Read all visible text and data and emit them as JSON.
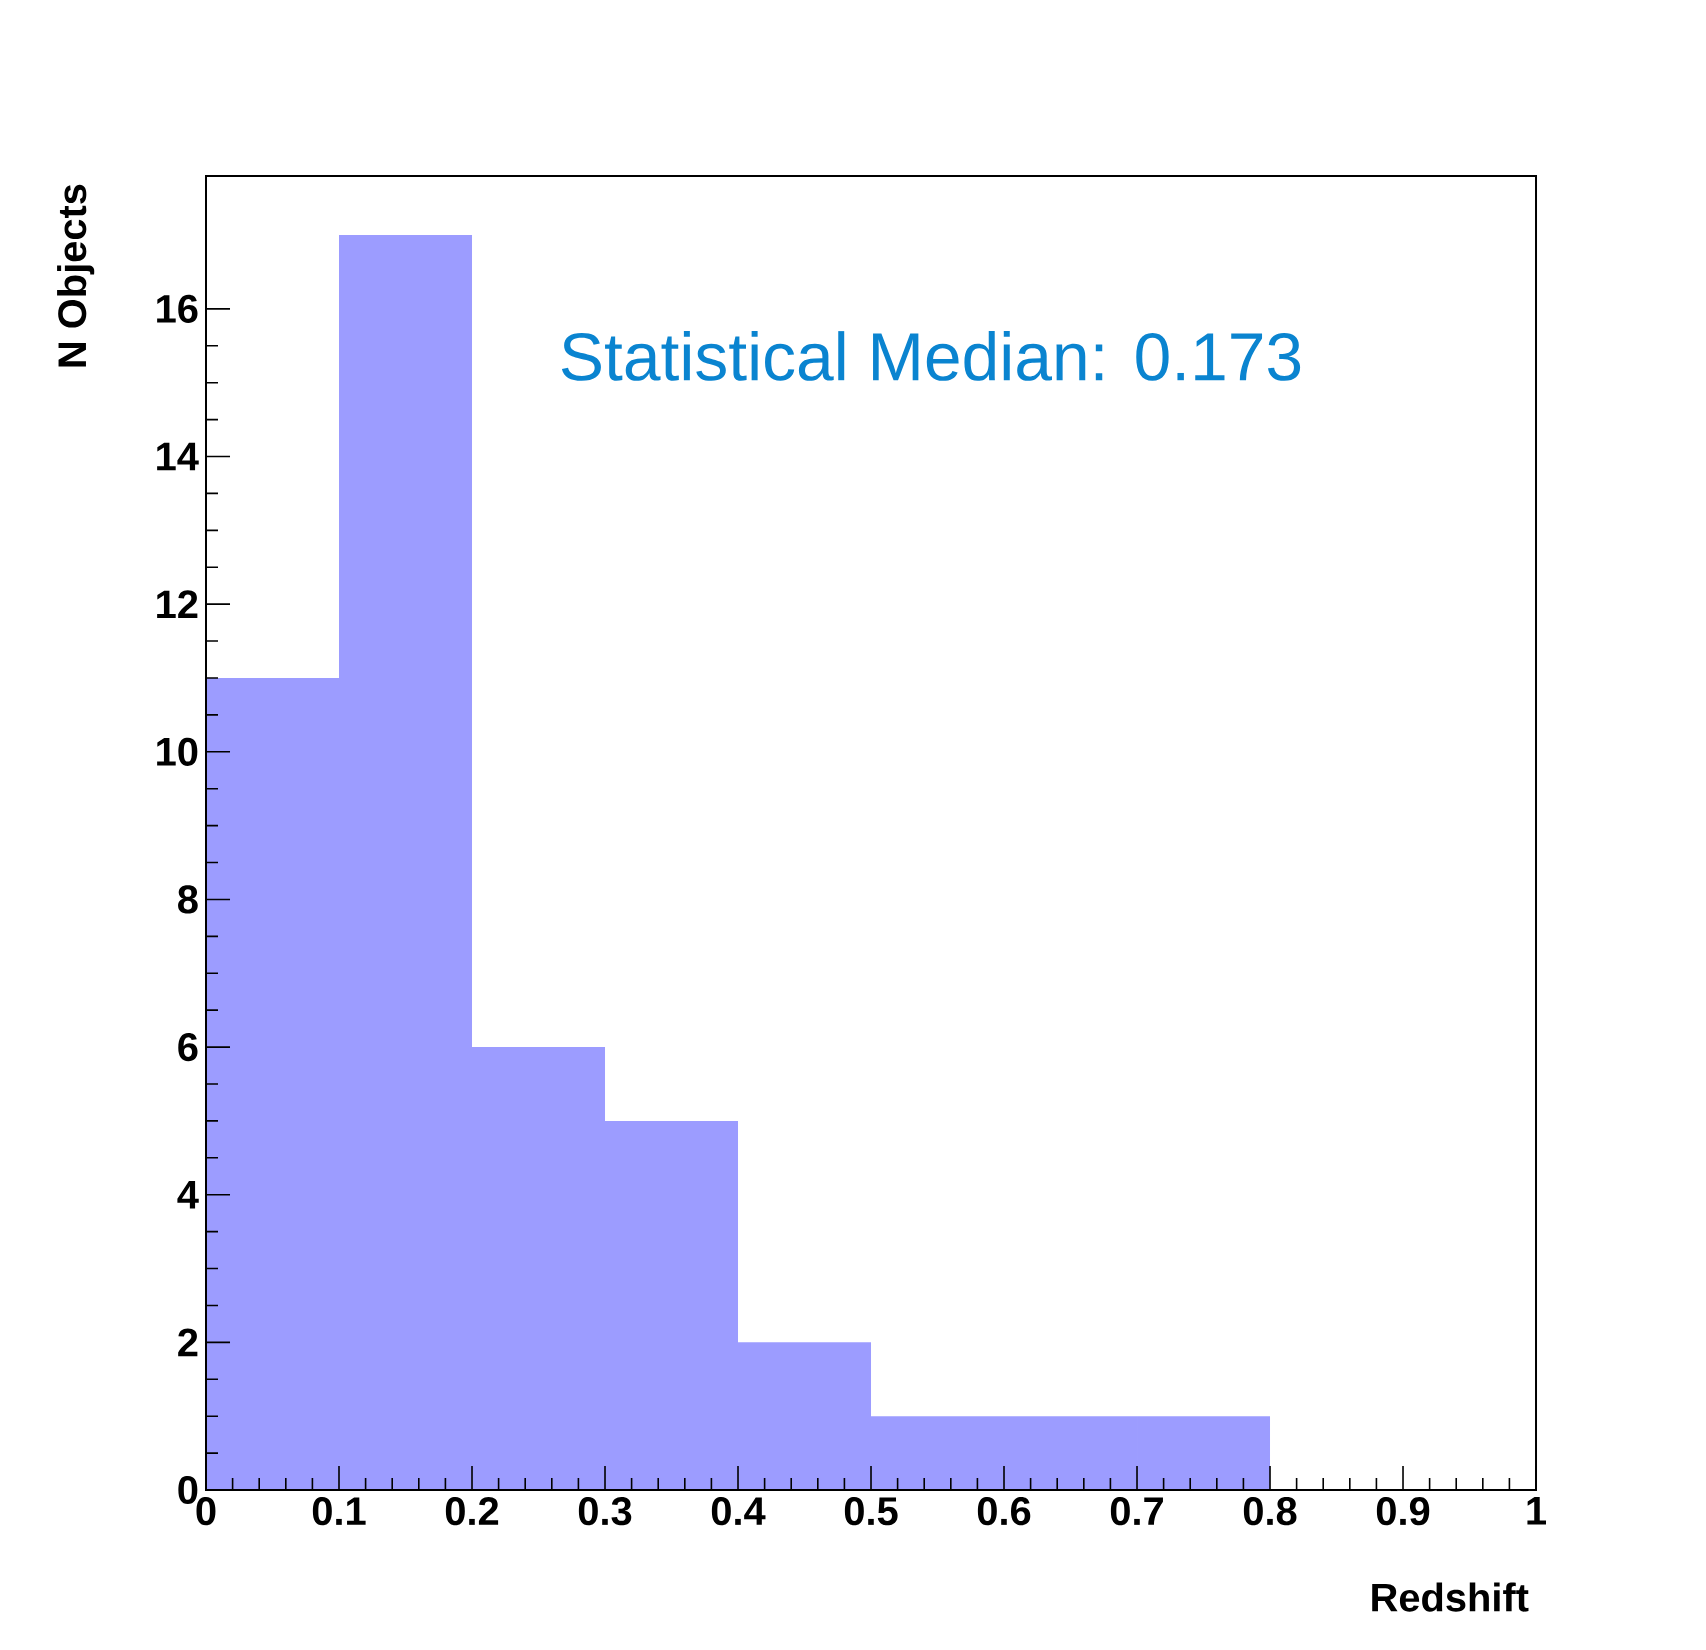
{
  "chart_data": {
    "type": "histogram",
    "xlabel": "Redshift",
    "ylabel": "N Objects",
    "bins": [
      0,
      0.1,
      0.2,
      0.3,
      0.4,
      0.5,
      0.6,
      0.7,
      0.8,
      0.9,
      1.0
    ],
    "values": [
      11,
      17,
      6,
      5,
      2,
      1,
      1,
      1,
      0,
      0
    ],
    "color": "#9c9cff",
    "xlim": [
      0,
      1
    ],
    "ylim": [
      0,
      17.8
    ],
    "xticks": [
      0,
      0.1,
      0.2,
      0.3,
      0.4,
      0.5,
      0.6,
      0.7,
      0.8,
      0.9,
      1
    ],
    "yticks": [
      0,
      2,
      4,
      6,
      8,
      10,
      12,
      14,
      16
    ],
    "grid": false,
    "annotations": [
      "Statistical Median: 0.173"
    ]
  }
}
